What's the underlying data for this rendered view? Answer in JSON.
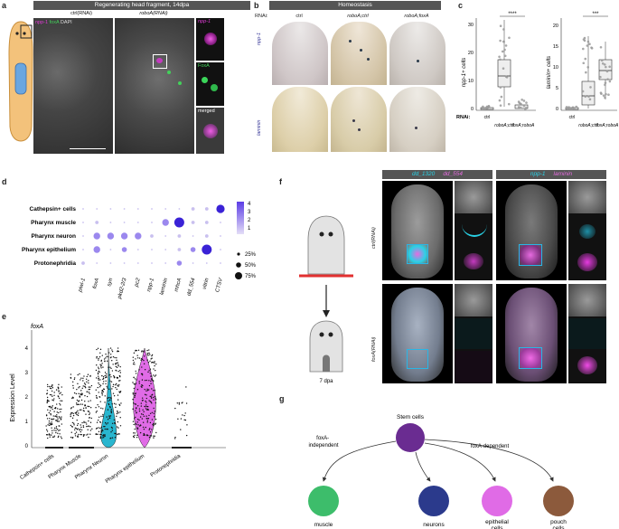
{
  "panels": {
    "a": {
      "letter": "a",
      "header": "Regenerating head fragment, 14dpa",
      "col_ctrl": "ctrl(RNAi)",
      "col_roboA": "roboA(RNAi)",
      "legend_npp": "npp-1",
      "legend_foxA": "foxA",
      "legend_dapi": "DAPI",
      "inset_labels": [
        "npp-1",
        "FoxA",
        "merged"
      ]
    },
    "b": {
      "letter": "b",
      "header": "Homeostasis",
      "rnai_label": "RNAi:",
      "cols": [
        "ctrl",
        "roboA;ctrl",
        "roboA;foxA"
      ],
      "rows": [
        "npp-1",
        "laminin"
      ]
    },
    "c": {
      "letter": "c",
      "sig1": "****",
      "sig2": "***",
      "rnai_label": "RNAi:",
      "left_ylabel": "npp-1+ cells",
      "right_ylabel": "laminin+ cells",
      "left_ticks": [
        "0",
        "10",
        "20",
        "30"
      ],
      "right_ticks": [
        "0",
        "5",
        "10",
        "15",
        "20"
      ],
      "groups": [
        "ctrl",
        "roboA;ctrl",
        "foxA;roboA"
      ]
    },
    "d": {
      "letter": "d",
      "rows": [
        "Cathepsin+ cells",
        "Pharynx muscle",
        "Pharynx neuron",
        "Pharynx epithelium",
        "Protonephridia"
      ],
      "cols": [
        "piwi-1",
        "foxA",
        "syn",
        "pkd2-2/3",
        "pc2",
        "npp-1",
        "laminin",
        "mhcA",
        "dd_554",
        "vitrin",
        "CTSV"
      ],
      "scale_ticks": [
        "4",
        "3",
        "2",
        "1"
      ],
      "size_legend": [
        "25%",
        "50%",
        "75%"
      ]
    },
    "e": {
      "letter": "e",
      "title": "foxA",
      "ylabel": "Expression Level",
      "yticks": [
        "0",
        "1",
        "2",
        "3",
        "4"
      ],
      "groups": [
        "Cathepsin+ cells",
        "Pharynx Muscle",
        "Pharynx Neuron",
        "Pharynx epithelium",
        "Protonephridia"
      ]
    },
    "f": {
      "letter": "f",
      "header_left_1": "dd_1320",
      "header_left_2": "dd_554",
      "header_right_1": "npp-1",
      "header_right_2": "laminin",
      "row_ctrl": "ctrl(RNAi)",
      "row_foxA": "foxA(RNAi)",
      "dpa": "7 dpa"
    },
    "g": {
      "letter": "g",
      "root": "Stem cells",
      "independent": "foxA-independent",
      "dependent": "foxA-dependent",
      "leaves": [
        "muscle",
        "neurons",
        "epithelial cells",
        "pouch cells"
      ]
    }
  },
  "colors": {
    "magenta": "#e03bd6",
    "cyan": "#29b6cf",
    "green": "#3dbd6b",
    "purple_root": "#6a2c91",
    "navy": "#2b3a8c",
    "pink": "#e06be6",
    "brown": "#8c5a3c",
    "dot_scale_high": "#5c3de6",
    "dot_scale_low": "#d8d0f5"
  }
}
